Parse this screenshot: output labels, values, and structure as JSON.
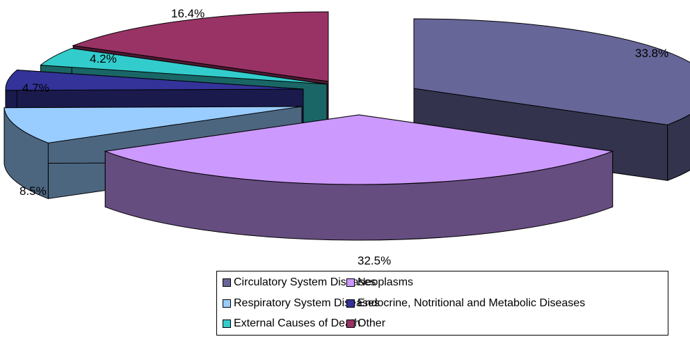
{
  "chart_data": {
    "type": "pie",
    "style": "3d-exploded",
    "slices": [
      {
        "label": "Circulatory System Diseases",
        "value": 33.8,
        "value_label": "33.8%",
        "color": "#666699",
        "side_color": "#33334d"
      },
      {
        "label": "Neoplasms",
        "value": 32.5,
        "value_label": "32.5%",
        "color": "#cc99ff",
        "side_color": "#664d80"
      },
      {
        "label": "Respiratory System Diseases",
        "value": 8.5,
        "value_label": "8.5%",
        "color": "#99ccff",
        "side_color": "#4d6680"
      },
      {
        "label": "Endocrine, Notritional and Metabolic Diseases",
        "value": 4.7,
        "value_label": "4.7%",
        "color": "#333399",
        "side_color": "#1a1a4d"
      },
      {
        "label": "External Causes of Death",
        "value": 4.2,
        "value_label": "4.2%",
        "color": "#33cccc",
        "side_color": "#1a6666"
      },
      {
        "label": "Other",
        "value": 16.4,
        "value_label": "16.4%",
        "color": "#993366",
        "side_color": "#4d1a33"
      }
    ],
    "legend": {
      "position": "bottom",
      "columns": 2
    }
  }
}
